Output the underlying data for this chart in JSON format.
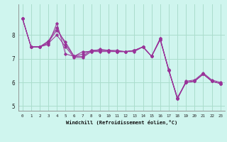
{
  "title": "",
  "xlabel": "Windchill (Refroidissement éolien,°C)",
  "ylabel": "",
  "bg_color": "#cff5ee",
  "grid_color": "#aaddcc",
  "line_color": "#993399",
  "xlim": [
    -0.5,
    23.5
  ],
  "ylim": [
    4.8,
    9.3
  ],
  "yticks": [
    5,
    6,
    7,
    8
  ],
  "xticks": [
    0,
    1,
    2,
    3,
    4,
    5,
    6,
    7,
    8,
    9,
    10,
    11,
    12,
    13,
    14,
    15,
    16,
    17,
    18,
    19,
    20,
    21,
    22,
    23
  ],
  "series": [
    [
      8.7,
      7.5,
      7.5,
      7.6,
      8.5,
      7.2,
      7.1,
      7.3,
      7.3,
      7.4,
      7.35,
      7.35,
      7.3,
      7.35,
      7.5,
      7.1,
      7.85,
      6.5,
      5.35,
      6.0,
      6.05,
      6.35,
      6.05,
      5.95
    ],
    [
      8.7,
      7.5,
      7.5,
      7.7,
      8.2,
      7.7,
      7.1,
      7.1,
      7.35,
      7.35,
      7.35,
      7.3,
      7.3,
      7.35,
      7.5,
      7.1,
      7.85,
      6.5,
      5.35,
      6.0,
      6.05,
      6.35,
      6.05,
      5.95
    ],
    [
      8.7,
      7.5,
      7.5,
      7.75,
      8.3,
      7.6,
      7.1,
      7.2,
      7.35,
      7.35,
      7.35,
      7.3,
      7.3,
      7.35,
      7.5,
      7.1,
      7.8,
      6.55,
      5.3,
      6.05,
      6.1,
      6.4,
      6.1,
      6.0
    ],
    [
      8.7,
      7.5,
      7.5,
      7.65,
      8.0,
      7.5,
      7.05,
      7.05,
      7.3,
      7.3,
      7.3,
      7.3,
      7.3,
      7.3,
      7.5,
      7.1,
      7.8,
      6.5,
      5.3,
      6.0,
      6.05,
      6.35,
      6.05,
      5.95
    ]
  ]
}
